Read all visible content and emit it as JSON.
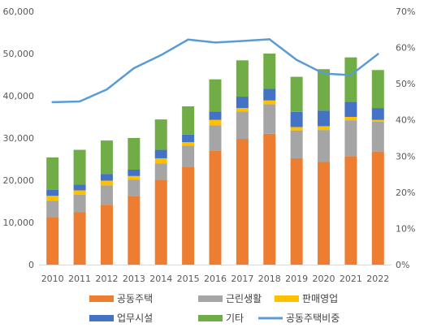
{
  "chart_data": {
    "type": "bar",
    "stacked": true,
    "categories": [
      "2010",
      "2011",
      "2012",
      "2013",
      "2014",
      "2015",
      "2016",
      "2017",
      "2018",
      "2019",
      "2020",
      "2021",
      "2022"
    ],
    "series": [
      {
        "name": "공동주택",
        "color": "#ED7D31",
        "values": [
          11300,
          12400,
          14200,
          16300,
          20000,
          23200,
          27000,
          29800,
          31000,
          25200,
          24400,
          25700,
          26800
        ]
      },
      {
        "name": "근린생활",
        "color": "#A5A5A5",
        "values": [
          3800,
          4200,
          4600,
          3800,
          4000,
          5000,
          6000,
          6500,
          7000,
          6600,
          7500,
          8500,
          7100
        ]
      },
      {
        "name": "판매영업",
        "color": "#FFC000",
        "values": [
          1200,
          1000,
          1100,
          900,
          1200,
          800,
          1300,
          800,
          900,
          800,
          900,
          800,
          400
        ]
      },
      {
        "name": "업무시설",
        "color": "#4472C4",
        "values": [
          1400,
          1400,
          1600,
          1500,
          2000,
          1800,
          2000,
          2700,
          2800,
          3600,
          3700,
          3600,
          2800
        ]
      },
      {
        "name": "기타",
        "color": "#70AD47",
        "values": [
          7700,
          8200,
          7900,
          7500,
          7200,
          6700,
          7600,
          8600,
          8300,
          8300,
          9800,
          10500,
          9000
        ]
      }
    ],
    "line": {
      "name": "공동주택비중",
      "color": "#5B9BD5",
      "values": [
        44.9,
        45.1,
        48.4,
        54.3,
        57.9,
        62.2,
        61.4,
        61.8,
        62.3,
        56.6,
        52.8,
        52.4,
        58.2
      ]
    },
    "y_left": {
      "min": 0,
      "max": 60000,
      "step": 10000,
      "ticks": [
        "0",
        "10,000",
        "20,000",
        "30,000",
        "40,000",
        "50,000",
        "60,000"
      ]
    },
    "y_right": {
      "min": 0,
      "max": 70,
      "step": 10,
      "ticks": [
        "0%",
        "10%",
        "20%",
        "30%",
        "40%",
        "50%",
        "60%",
        "70%"
      ]
    },
    "grid": false,
    "legend": "bottom"
  }
}
